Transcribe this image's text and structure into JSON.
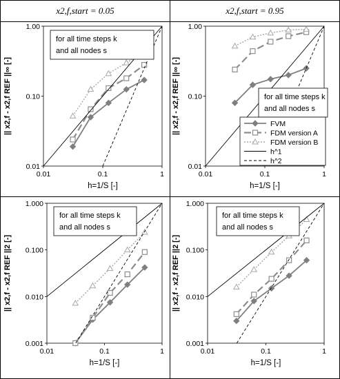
{
  "headers": {
    "left": "x2,f,start = 0.05",
    "right": "x2,f,start = 0.95"
  },
  "annotation_lines": [
    "for all time steps k",
    "and all nodes s"
  ],
  "legend": [
    "FVM",
    "FDM version A",
    "FDM version B",
    "h^1",
    "h^2"
  ],
  "xlabel": "h=1/S [-]",
  "ylabel_inf": "|| x2,f - x2,f REF ||∞ [-]",
  "ylabel_2": "|| x2,f - x2,f REF ||2 [-]",
  "colors": {
    "fvm": "#7f7f7f",
    "fdmA": "#8c8c8c",
    "fdmB": "#a6a6a6",
    "ref": "#000000"
  },
  "chart_data": [
    {
      "type": "line",
      "name": "top-left",
      "xscale": "log",
      "yscale": "log",
      "xlim": [
        0.01,
        1
      ],
      "ylim": [
        0.01,
        1
      ],
      "x_ticks": [
        "0.01",
        "0.1",
        "1"
      ],
      "y_ticks": [
        "0.01",
        "0.10",
        "1.00"
      ],
      "h": [
        0.03125,
        0.0625,
        0.125,
        0.25,
        0.5
      ],
      "series": [
        {
          "name": "FVM",
          "values": [
            0.019,
            0.05,
            0.08,
            0.125,
            0.17
          ]
        },
        {
          "name": "FDM version A",
          "values": [
            0.024,
            0.065,
            0.13,
            0.18,
            0.28
          ]
        },
        {
          "name": "FDM version B",
          "values": [
            0.052,
            0.125,
            0.21,
            0.3,
            0.42
          ]
        },
        {
          "name": "h^1",
          "x": [
            0.01,
            1
          ],
          "values": [
            0.01,
            1
          ]
        },
        {
          "name": "h^2",
          "x": [
            0.1,
            1
          ],
          "values": [
            0.01,
            1
          ]
        }
      ]
    },
    {
      "type": "line",
      "name": "top-right",
      "xscale": "log",
      "yscale": "log",
      "xlim": [
        0.01,
        1
      ],
      "ylim": [
        0.01,
        1
      ],
      "x_ticks": [
        "0.01",
        "0.1",
        "1"
      ],
      "y_ticks": [
        "0.01",
        "0.10",
        "1.00"
      ],
      "h": [
        0.03125,
        0.0625,
        0.125,
        0.25,
        0.5
      ],
      "series": [
        {
          "name": "FVM",
          "values": [
            0.08,
            0.145,
            0.175,
            0.2,
            0.25
          ]
        },
        {
          "name": "FDM version A",
          "values": [
            0.24,
            0.44,
            0.6,
            0.72,
            0.82
          ]
        },
        {
          "name": "FDM version B",
          "values": [
            0.52,
            0.7,
            0.8,
            0.88,
            0.9
          ]
        },
        {
          "name": "h^1",
          "x": [
            0.01,
            1
          ],
          "values": [
            0.01,
            1
          ]
        },
        {
          "name": "h^2",
          "x": [
            0.1,
            1
          ],
          "values": [
            0.01,
            1
          ]
        }
      ]
    },
    {
      "type": "line",
      "name": "bottom-left",
      "xscale": "log",
      "yscale": "log",
      "xlim": [
        0.01,
        1
      ],
      "ylim": [
        0.001,
        1
      ],
      "x_ticks": [
        "0.01",
        "0.1",
        "1"
      ],
      "y_ticks": [
        "0.001",
        "0.010",
        "0.100",
        "1.000"
      ],
      "h": [
        0.03125,
        0.0625,
        0.125,
        0.25,
        0.5
      ],
      "series": [
        {
          "name": "FVM",
          "values": [
            0.001,
            0.0032,
            0.0075,
            0.018,
            0.042
          ]
        },
        {
          "name": "FDM version A",
          "values": [
            0.001,
            0.0035,
            0.012,
            0.03,
            0.09
          ]
        },
        {
          "name": "FDM version B",
          "values": [
            0.0072,
            0.017,
            0.04,
            0.1,
            0.24
          ]
        },
        {
          "name": "h^1",
          "x": [
            0.01,
            1
          ],
          "values": [
            0.01,
            1
          ]
        },
        {
          "name": "h^2",
          "x": [
            0.01,
            1
          ],
          "values": [
            0.0001,
            1
          ]
        }
      ]
    },
    {
      "type": "line",
      "name": "bottom-right",
      "xscale": "log",
      "yscale": "log",
      "xlim": [
        0.01,
        1
      ],
      "ylim": [
        0.001,
        1
      ],
      "x_ticks": [
        "0.01",
        "0.1",
        "1"
      ],
      "y_ticks": [
        "0.001",
        "0.010",
        "0.100",
        "1.000"
      ],
      "h": [
        0.03125,
        0.0625,
        0.125,
        0.25,
        0.5
      ],
      "series": [
        {
          "name": "FVM",
          "values": [
            0.003,
            0.008,
            0.015,
            0.028,
            0.06
          ]
        },
        {
          "name": "FDM version A",
          "values": [
            0.0042,
            0.011,
            0.024,
            0.06,
            0.16
          ]
        },
        {
          "name": "FDM version B",
          "values": [
            0.016,
            0.038,
            0.09,
            0.2,
            0.45
          ]
        },
        {
          "name": "h^1",
          "x": [
            0.01,
            1
          ],
          "values": [
            0.01,
            1
          ]
        },
        {
          "name": "h^2",
          "x": [
            0.01,
            1
          ],
          "values": [
            0.0001,
            1
          ]
        }
      ]
    }
  ]
}
